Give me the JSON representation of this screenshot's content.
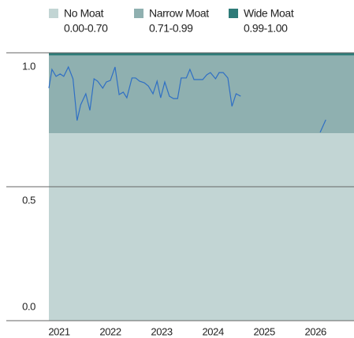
{
  "chart_data": {
    "type": "line",
    "bands": [
      {
        "name": "No Moat",
        "label": "0.00-0.70",
        "from": 0,
        "to": 0.7,
        "color": "#c2d5d4"
      },
      {
        "name": "Narrow Moat",
        "label": "0.71-0.99",
        "from": 0.7,
        "to": 0.99,
        "color": "#8fb0b0"
      },
      {
        "name": "Wide Moat",
        "label": "0.99-1.00",
        "from": 0.99,
        "to": 1.0,
        "color": "#2e7b78"
      }
    ],
    "series": [
      {
        "color": "#2f6fc4",
        "x": [
          2020.8,
          2020.86,
          2020.94,
          2021.02,
          2021.09,
          2021.18,
          2021.27,
          2021.35,
          2021.42,
          2021.52,
          2021.6,
          2021.68,
          2021.75,
          2021.85,
          2021.92,
          2022.0,
          2022.09,
          2022.17,
          2022.25,
          2022.32,
          2022.42,
          2022.49,
          2022.57,
          2022.66,
          2022.74,
          2022.83,
          2022.91,
          2022.98,
          2023.06,
          2023.15,
          2023.23,
          2023.31,
          2023.38,
          2023.48,
          2023.55,
          2023.63,
          2023.71,
          2023.8,
          2023.88,
          2023.95,
          2024.05,
          2024.12,
          2024.2,
          2024.29,
          2024.37,
          2024.45,
          2024.54,
          null,
          2026.09,
          2026.2
        ],
        "values": [
          0.868,
          0.938,
          0.912,
          0.921,
          0.912,
          0.947,
          0.903,
          0.747,
          0.806,
          0.847,
          0.785,
          0.903,
          0.894,
          0.868,
          0.891,
          0.897,
          0.947,
          0.844,
          0.853,
          0.832,
          0.906,
          0.906,
          0.894,
          0.888,
          0.876,
          0.847,
          0.894,
          0.832,
          0.891,
          0.838,
          0.829,
          0.829,
          0.906,
          0.906,
          0.938,
          0.9,
          0.9,
          0.9,
          0.918,
          0.926,
          0.903,
          0.926,
          0.926,
          0.906,
          0.8,
          0.847,
          0.838,
          null,
          0.703,
          0.75
        ]
      }
    ],
    "xlim": [
      2020.8,
      2026.75
    ],
    "xticks": [
      2021,
      2022,
      2023,
      2024,
      2025,
      2026
    ],
    "ylim": [
      0,
      1.0
    ],
    "yticks": [
      {
        "value": 0,
        "label": "0.0"
      },
      {
        "value": 0.5,
        "label": "0.5"
      },
      {
        "value": 1.0,
        "label": "1.0"
      }
    ]
  }
}
